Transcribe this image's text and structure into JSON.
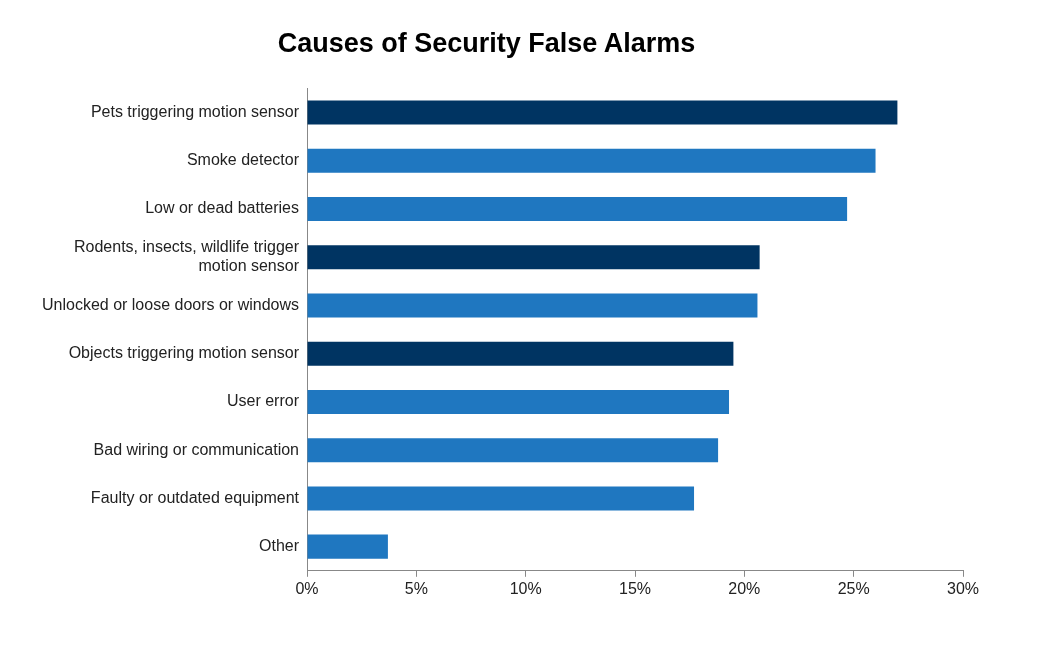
{
  "chart_data": {
    "type": "bar",
    "orientation": "horizontal",
    "title": "Causes of Security False Alarms",
    "categories": [
      "Pets triggering motion sensor",
      "Smoke detector",
      "Low or dead batteries",
      "Rodents, insects, wildlife trigger motion sensor",
      "Unlocked or loose doors or windows",
      "Objects triggering motion sensor",
      "User error",
      "Bad wiring or communication",
      "Faulty or outdated equipment",
      "Other"
    ],
    "values": [
      27,
      26,
      24.7,
      20.7,
      20.6,
      19.5,
      19.3,
      18.8,
      17.7,
      3.7
    ],
    "colors": [
      "#003462",
      "#1f77c0",
      "#1f77c0",
      "#003462",
      "#1f77c0",
      "#003462",
      "#1f77c0",
      "#1f77c0",
      "#1f77c0",
      "#1f77c0"
    ],
    "xlim": [
      0,
      30
    ],
    "xticks": [
      {
        "value": 0,
        "label": "0%"
      },
      {
        "value": 5,
        "label": "5%"
      },
      {
        "value": 10,
        "label": "10%"
      },
      {
        "value": 15,
        "label": "15%"
      },
      {
        "value": 20,
        "label": "20%"
      },
      {
        "value": 25,
        "label": "25%"
      },
      {
        "value": 30,
        "label": "30%"
      }
    ],
    "grid": false,
    "legend": false
  }
}
